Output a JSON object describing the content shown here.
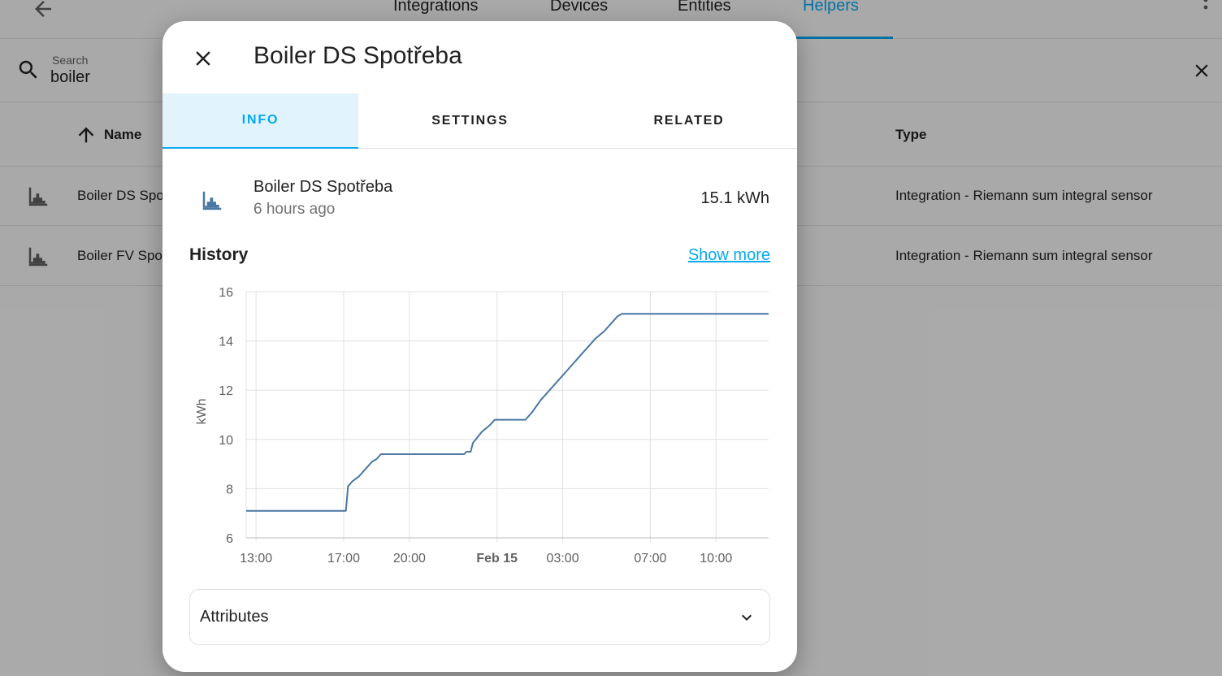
{
  "header": {
    "tabs": [
      {
        "label": "Integrations"
      },
      {
        "label": "Devices"
      },
      {
        "label": "Entities"
      },
      {
        "label": "Helpers"
      }
    ],
    "active_tab": "Helpers"
  },
  "search": {
    "label": "Search",
    "value": "boiler"
  },
  "table": {
    "columns": {
      "name": "Name",
      "type": "Type"
    },
    "rows": [
      {
        "name": "Boiler DS Spo",
        "type": "Integration - Riemann sum integral sensor",
        "icon": "chart-histogram-icon"
      },
      {
        "name": "Boiler FV Spo",
        "type": "Integration - Riemann sum integral sensor",
        "icon": "chart-histogram-icon"
      }
    ]
  },
  "dialog": {
    "title": "Boiler DS Spotřeba",
    "tabs": [
      {
        "label": "INFO"
      },
      {
        "label": "SETTINGS"
      },
      {
        "label": "RELATED"
      }
    ],
    "active_tab": "INFO",
    "entity": {
      "name": "Boiler DS Spotřeba",
      "last_changed": "6 hours ago",
      "state": "15.1 kWh",
      "icon": "chart-histogram-icon"
    },
    "history_title": "History",
    "show_more": "Show more",
    "attributes_label": "Attributes"
  },
  "colors": {
    "accent": "#03a9f4",
    "line": "#4a77a4",
    "tab_active_bg": "#e1f3fc"
  },
  "chart_data": {
    "type": "line",
    "ylabel": "kWh",
    "ylim": [
      6,
      16
    ],
    "yticks": [
      "6",
      "8",
      "10",
      "12",
      "14",
      "16"
    ],
    "xticks": [
      {
        "label": "13:00",
        "h": 13.0,
        "bold": false
      },
      {
        "label": "17:00",
        "h": 17.0,
        "bold": false
      },
      {
        "label": "20:00",
        "h": 20.0,
        "bold": false
      },
      {
        "label": "Feb 15",
        "h": 24.0,
        "bold": true
      },
      {
        "label": "03:00",
        "h": 27.0,
        "bold": false
      },
      {
        "label": "07:00",
        "h": 31.0,
        "bold": false
      },
      {
        "label": "10:00",
        "h": 34.0,
        "bold": false
      }
    ],
    "xlim_hours": [
      12.55,
      36.4
    ],
    "series": [
      {
        "points": [
          [
            12.55,
            7.1
          ],
          [
            17.1,
            7.1
          ],
          [
            17.2,
            8.1
          ],
          [
            17.4,
            8.3
          ],
          [
            17.7,
            8.5
          ],
          [
            18.0,
            8.8
          ],
          [
            18.3,
            9.1
          ],
          [
            18.5,
            9.2
          ],
          [
            18.7,
            9.4
          ],
          [
            22.5,
            9.4
          ],
          [
            22.6,
            9.5
          ],
          [
            22.8,
            9.5
          ],
          [
            22.9,
            9.85
          ],
          [
            23.3,
            10.3
          ],
          [
            23.7,
            10.6
          ],
          [
            23.9,
            10.8
          ],
          [
            25.3,
            10.8
          ],
          [
            25.6,
            11.1
          ],
          [
            26.0,
            11.6
          ],
          [
            26.4,
            12.0
          ],
          [
            26.8,
            12.4
          ],
          [
            27.2,
            12.8
          ],
          [
            27.6,
            13.2
          ],
          [
            28.0,
            13.6
          ],
          [
            28.5,
            14.1
          ],
          [
            28.9,
            14.4
          ],
          [
            29.3,
            14.8
          ],
          [
            29.5,
            15.0
          ],
          [
            29.7,
            15.1
          ],
          [
            36.4,
            15.1
          ]
        ]
      }
    ],
    "grid": true
  }
}
